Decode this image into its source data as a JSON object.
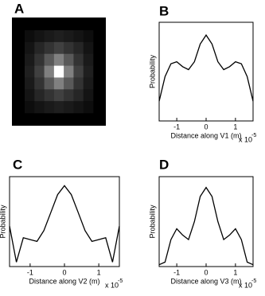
{
  "chart_data": [
    {
      "type": "heatmap",
      "panel": "A",
      "colormap": "gray",
      "z": [
        [
          0.05,
          0.08,
          0.1,
          0.12,
          0.1,
          0.08,
          0.05
        ],
        [
          0.08,
          0.15,
          0.2,
          0.25,
          0.2,
          0.15,
          0.08
        ],
        [
          0.1,
          0.2,
          0.35,
          0.5,
          0.35,
          0.2,
          0.1
        ],
        [
          0.12,
          0.25,
          0.5,
          1,
          0.5,
          0.25,
          0.12
        ],
        [
          0.1,
          0.2,
          0.35,
          0.5,
          0.35,
          0.2,
          0.1
        ],
        [
          0.08,
          0.15,
          0.2,
          0.25,
          0.2,
          0.15,
          0.08
        ],
        [
          0.05,
          0.08,
          0.1,
          0.12,
          0.1,
          0.08,
          0.05
        ]
      ]
    },
    {
      "type": "line",
      "panel": "B",
      "ylabel": "Probability",
      "xlabel": "Distance along V1 (m)",
      "x_multiplier": "x 10",
      "x_exponent": "-5",
      "color": "#000000",
      "x": [
        -1.6,
        -1.4,
        -1.2,
        -1,
        -0.8,
        -0.6,
        -0.4,
        -0.2,
        0,
        0.2,
        0.4,
        0.6,
        0.8,
        1,
        1.2,
        1.4,
        1.6
      ],
      "values": [
        0.2,
        0.45,
        0.58,
        0.6,
        0.55,
        0.52,
        0.6,
        0.78,
        0.87,
        0.78,
        0.6,
        0.52,
        0.55,
        0.6,
        0.58,
        0.45,
        0.2
      ],
      "xlim": [
        -1.6,
        1.6
      ],
      "ylim": [
        0,
        1
      ],
      "xticks": [
        -1,
        0,
        1
      ]
    },
    {
      "type": "line",
      "panel": "C",
      "ylabel": "Probability",
      "xlabel": "Distance along V2 (m)",
      "x_multiplier": "x 10",
      "x_exponent": "-5",
      "color": "#000000",
      "x": [
        -1.6,
        -1.4,
        -1.2,
        -1,
        -0.8,
        -0.6,
        -0.4,
        -0.2,
        0,
        0.2,
        0.4,
        0.6,
        0.8,
        1,
        1.2,
        1.4,
        1.6
      ],
      "values": [
        0.45,
        0.05,
        0.32,
        0.3,
        0.28,
        0.4,
        0.6,
        0.8,
        0.9,
        0.8,
        0.6,
        0.4,
        0.28,
        0.3,
        0.32,
        0.05,
        0.45
      ],
      "xlim": [
        -1.6,
        1.6
      ],
      "ylim": [
        0,
        1
      ],
      "xticks": [
        -1,
        0,
        1
      ]
    },
    {
      "type": "line",
      "panel": "D",
      "ylabel": "Probability",
      "xlabel": "Distance along V3 (m)",
      "x_multiplier": "x 10",
      "x_exponent": "-5",
      "color": "#000000",
      "x": [
        -1.6,
        -1.4,
        -1.2,
        -1,
        -0.8,
        -0.6,
        -0.4,
        -0.2,
        0,
        0.2,
        0.4,
        0.6,
        0.8,
        1,
        1.2,
        1.4,
        1.6
      ],
      "values": [
        0.02,
        0.05,
        0.3,
        0.42,
        0.35,
        0.3,
        0.5,
        0.78,
        0.88,
        0.78,
        0.5,
        0.3,
        0.35,
        0.42,
        0.3,
        0.05,
        0.02
      ],
      "xlim": [
        -1.6,
        1.6
      ],
      "ylim": [
        0,
        1
      ],
      "xticks": [
        -1,
        0,
        1
      ]
    }
  ]
}
